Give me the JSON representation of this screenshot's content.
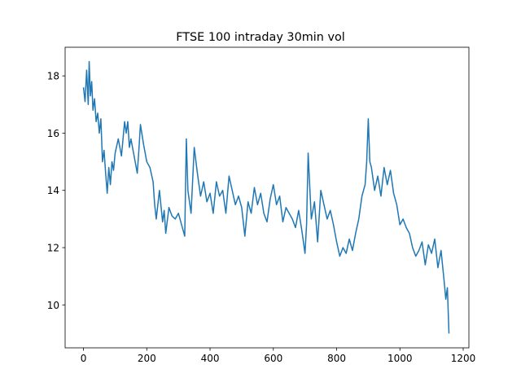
{
  "chart_data": {
    "type": "line",
    "title": "FTSE 100 intraday 30min vol",
    "xlabel": "",
    "ylabel": "",
    "xlim": [
      -58,
      1218
    ],
    "ylim": [
      8.5,
      19.0
    ],
    "x_ticks": [
      0,
      200,
      400,
      600,
      800,
      1000,
      1200
    ],
    "x_tick_labels": [
      "0",
      "200",
      "400",
      "600",
      "800",
      "1000",
      "1200"
    ],
    "y_ticks": [
      10,
      12,
      14,
      16,
      18
    ],
    "y_tick_labels": [
      "10",
      "12",
      "14",
      "16",
      "18"
    ],
    "grid": false,
    "series": [
      {
        "color": "#1f77b4",
        "x": [
          0,
          5,
          10,
          15,
          18,
          22,
          26,
          30,
          35,
          40,
          45,
          50,
          55,
          60,
          65,
          70,
          75,
          80,
          85,
          90,
          95,
          100,
          110,
          120,
          130,
          135,
          140,
          145,
          150,
          160,
          170,
          175,
          180,
          190,
          200,
          210,
          220,
          225,
          230,
          240,
          250,
          255,
          260,
          270,
          280,
          290,
          300,
          310,
          320,
          325,
          330,
          340,
          350,
          360,
          370,
          380,
          390,
          400,
          410,
          420,
          430,
          440,
          450,
          460,
          470,
          480,
          490,
          500,
          510,
          520,
          530,
          540,
          550,
          560,
          570,
          580,
          590,
          600,
          610,
          620,
          630,
          640,
          650,
          660,
          670,
          680,
          690,
          700,
          705,
          710,
          720,
          730,
          740,
          750,
          760,
          770,
          780,
          790,
          800,
          810,
          820,
          830,
          840,
          850,
          860,
          870,
          880,
          890,
          895,
          900,
          905,
          910,
          920,
          930,
          940,
          950,
          960,
          970,
          980,
          990,
          1000,
          1010,
          1020,
          1030,
          1040,
          1050,
          1060,
          1070,
          1080,
          1090,
          1100,
          1110,
          1120,
          1130,
          1140,
          1145,
          1150,
          1155
        ],
        "y": [
          17.6,
          17.1,
          18.2,
          17.0,
          18.5,
          17.3,
          17.8,
          16.8,
          17.2,
          16.4,
          16.7,
          16.0,
          16.5,
          15.0,
          15.4,
          14.6,
          13.9,
          14.8,
          14.2,
          15.0,
          14.7,
          15.3,
          15.8,
          15.2,
          16.4,
          16.0,
          16.4,
          15.5,
          15.8,
          15.2,
          14.6,
          15.4,
          16.3,
          15.6,
          15.0,
          14.8,
          14.3,
          13.5,
          13.0,
          14.0,
          12.9,
          13.3,
          12.5,
          13.4,
          13.1,
          13.0,
          13.2,
          12.8,
          12.4,
          15.8,
          14.0,
          13.2,
          15.5,
          14.6,
          13.8,
          14.3,
          13.6,
          13.9,
          13.2,
          14.3,
          13.8,
          14.0,
          13.2,
          14.5,
          14.0,
          13.5,
          13.8,
          13.4,
          12.4,
          13.6,
          13.2,
          14.1,
          13.5,
          13.9,
          13.2,
          12.9,
          13.7,
          14.2,
          13.5,
          13.8,
          12.9,
          13.4,
          13.2,
          13.0,
          12.7,
          13.3,
          12.6,
          11.8,
          12.8,
          15.3,
          13.0,
          13.6,
          12.2,
          14.0,
          13.5,
          13.0,
          13.3,
          12.8,
          12.2,
          11.7,
          12.0,
          11.8,
          12.3,
          11.9,
          12.5,
          13.0,
          13.8,
          14.2,
          15.0,
          16.5,
          15.0,
          14.8,
          14.0,
          14.5,
          13.8,
          14.8,
          14.2,
          14.7,
          13.9,
          13.5,
          12.8,
          13.0,
          12.7,
          12.5,
          12.0,
          11.7,
          11.9,
          12.2,
          11.4,
          12.1,
          11.8,
          12.3,
          11.3,
          11.9,
          10.8,
          10.2,
          10.6,
          9.0
        ]
      }
    ]
  }
}
